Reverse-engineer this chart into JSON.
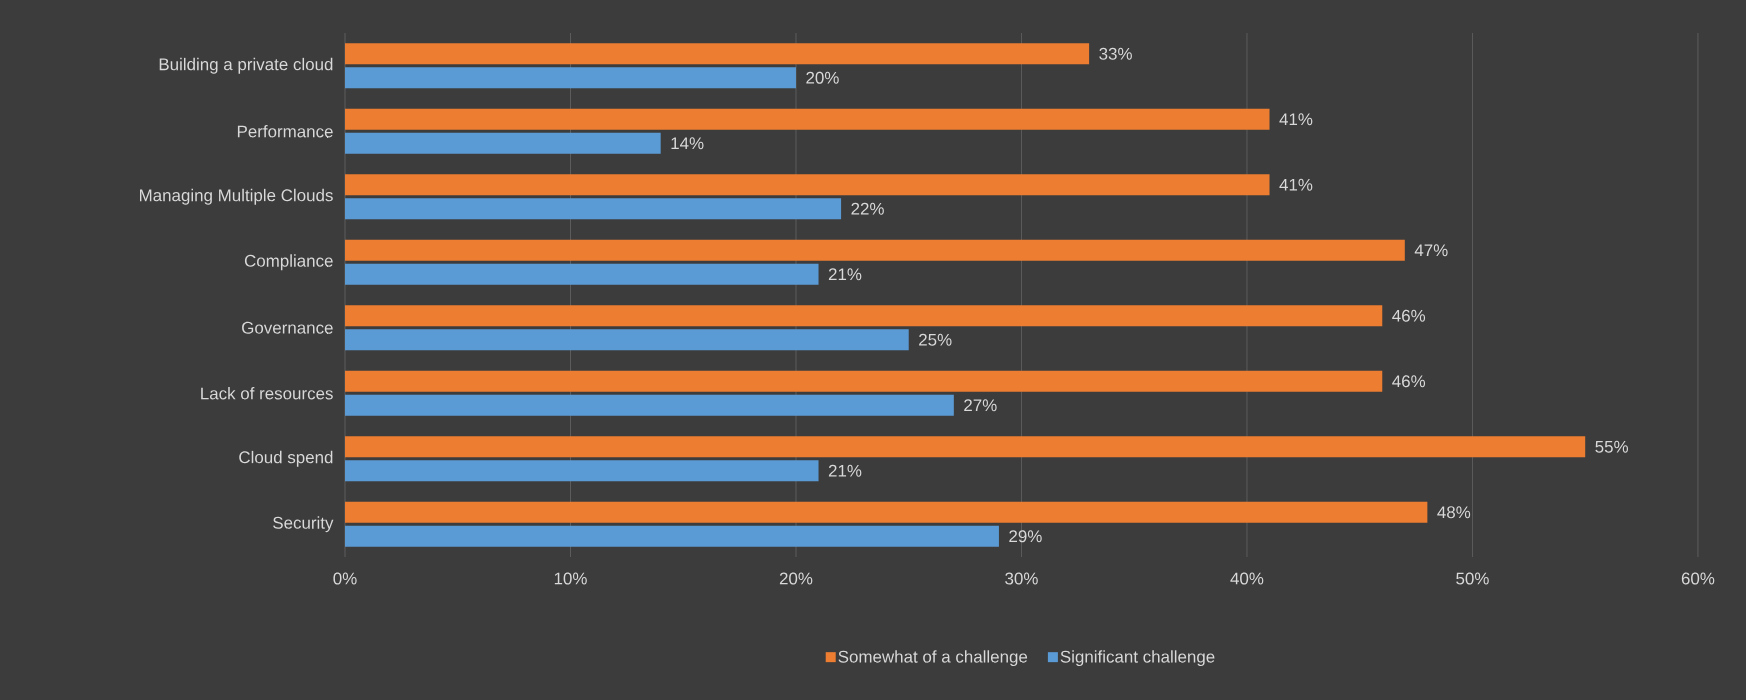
{
  "chart_data": {
    "type": "bar",
    "orientation": "horizontal",
    "categories": [
      "Building a private cloud",
      "Performance",
      "Managing Multiple Clouds",
      "Compliance",
      "Governance",
      "Lack of resources",
      "Cloud spend",
      "Security"
    ],
    "series": [
      {
        "name": "Somewhat of a challenge",
        "color": "#ed7d31",
        "values": [
          33,
          41,
          41,
          47,
          46,
          46,
          55,
          48
        ],
        "value_labels": [
          "33%",
          "41%",
          "41%",
          "47%",
          "46%",
          "46%",
          "55%",
          "48%"
        ]
      },
      {
        "name": "Significant challenge",
        "color": "#5b9bd5",
        "values": [
          20,
          14,
          22,
          21,
          25,
          27,
          21,
          29
        ],
        "value_labels": [
          "20%",
          "14%",
          "22%",
          "21%",
          "25%",
          "27%",
          "21%",
          "29%"
        ]
      }
    ],
    "xlim": [
      0,
      60
    ],
    "xticks": [
      {
        "value": 0,
        "label": "0%"
      },
      {
        "value": 10,
        "label": "10%"
      },
      {
        "value": 20,
        "label": "20%"
      },
      {
        "value": 30,
        "label": "30%"
      },
      {
        "value": 40,
        "label": "40%"
      },
      {
        "value": 50,
        "label": "50%"
      },
      {
        "value": 60,
        "label": "60%"
      }
    ],
    "grid": "x",
    "legend": "bottom"
  }
}
